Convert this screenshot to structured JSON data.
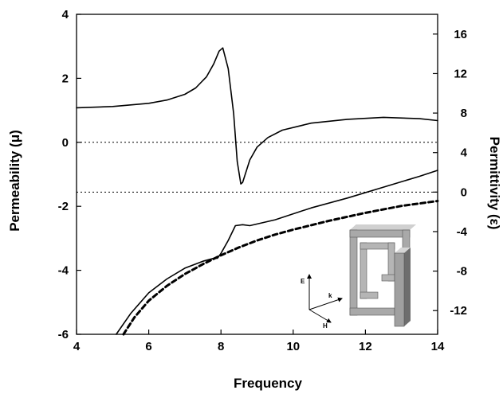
{
  "chart_data": {
    "type": "line",
    "xlabel": "Frequency",
    "ylabel_left": "Permeability (μ)",
    "ylabel_right": "Permittivity (ε)",
    "xlim": [
      4,
      14
    ],
    "ylim_left": [
      -6,
      4
    ],
    "ylim_right": [
      -14.4,
      18
    ],
    "x_ticks": [
      4,
      6,
      8,
      10,
      12,
      14
    ],
    "y_ticks_left": [
      -6,
      -4,
      -2,
      0,
      2,
      4
    ],
    "y_ticks_right": [
      -12,
      -8,
      -4,
      0,
      4,
      8,
      12,
      16
    ],
    "series": [
      {
        "axis": "left",
        "style": "solid",
        "x": [
          4.0,
          5.0,
          6.0,
          6.5,
          7.0,
          7.3,
          7.6,
          7.8,
          7.95,
          8.05,
          8.2,
          8.35,
          8.45,
          8.55,
          8.6,
          8.7,
          8.8,
          9.0,
          9.3,
          9.7,
          10.5,
          11.5,
          12.5,
          13.5,
          14.0
        ],
        "y": [
          1.08,
          1.12,
          1.22,
          1.32,
          1.5,
          1.7,
          2.05,
          2.45,
          2.85,
          2.95,
          2.3,
          0.9,
          -0.6,
          -1.3,
          -1.25,
          -0.9,
          -0.55,
          -0.15,
          0.15,
          0.38,
          0.6,
          0.72,
          0.78,
          0.74,
          0.68
        ]
      },
      {
        "axis": "right",
        "style": "solid",
        "x": [
          5.1,
          5.5,
          6.0,
          6.5,
          7.0,
          7.5,
          7.8,
          7.9,
          8.0,
          8.2,
          8.4,
          8.6,
          8.8,
          9.5,
          10.5,
          11.5,
          12.5,
          13.5,
          14.0
        ],
        "y": [
          -14.4,
          -12.3,
          -10.2,
          -8.8,
          -7.7,
          -7.0,
          -6.7,
          -6.7,
          -6.2,
          -4.9,
          -3.4,
          -3.3,
          -3.4,
          -2.8,
          -1.6,
          -0.6,
          0.5,
          1.6,
          2.2
        ]
      },
      {
        "axis": "right",
        "style": "dashed",
        "x": [
          5.3,
          5.6,
          6.0,
          6.5,
          7.0,
          7.5,
          8.0,
          8.5,
          9.0,
          9.5,
          10.0,
          11.0,
          12.0,
          13.0,
          14.0
        ],
        "y": [
          -14.4,
          -12.7,
          -11.0,
          -9.5,
          -8.3,
          -7.3,
          -6.4,
          -5.6,
          -4.9,
          -4.3,
          -3.8,
          -2.9,
          -2.1,
          -1.4,
          -0.9
        ]
      }
    ],
    "reference_lines": [
      {
        "axis": "left",
        "value": 0,
        "style": "dotted"
      },
      {
        "axis": "right",
        "value": 0,
        "style": "dotted"
      }
    ],
    "inset": {
      "axis_labels": [
        "E",
        "k",
        "H"
      ]
    }
  }
}
